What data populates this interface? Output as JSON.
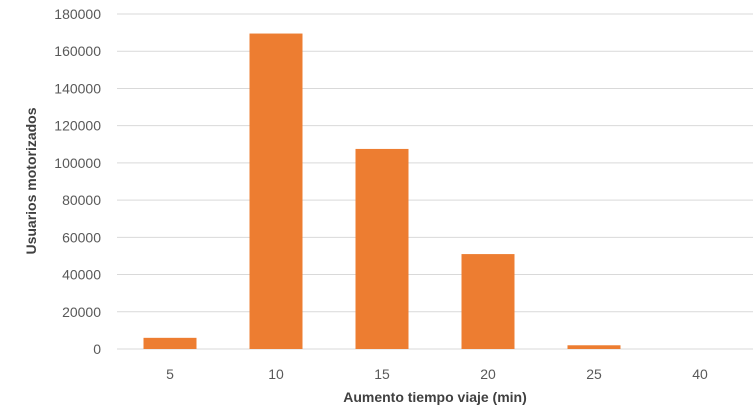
{
  "chart_data": {
    "type": "bar",
    "title": "",
    "xlabel": "Aumento tiempo viaje (min)",
    "ylabel": "Usuarios motorizados",
    "categories": [
      "5",
      "10",
      "15",
      "20",
      "25",
      "40"
    ],
    "values": [
      6000,
      169500,
      107500,
      51000,
      2000,
      0
    ],
    "ylim": [
      0,
      180000
    ],
    "yticks": [
      0,
      20000,
      40000,
      60000,
      80000,
      100000,
      120000,
      140000,
      160000,
      180000
    ],
    "ytick_labels": [
      "0",
      "20000",
      "40000",
      "60000",
      "80000",
      "100000",
      "120000",
      "140000",
      "160000",
      "180000"
    ],
    "grid": true,
    "legend": "none",
    "bar_color": "#ED7D31",
    "grid_color": "#D9D9D9"
  }
}
